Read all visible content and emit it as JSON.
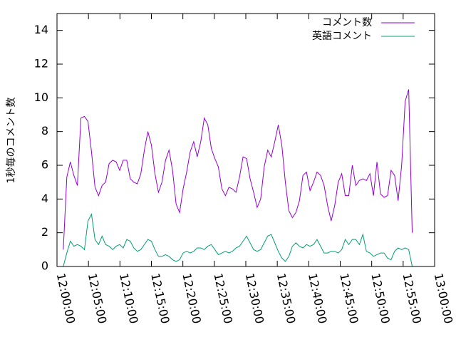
{
  "chart_data": {
    "type": "line",
    "ylabel": "1秒毎のコメント数",
    "legend": "top-right",
    "x": [
      1,
      1.56,
      2.12,
      2.68,
      3.24,
      3.8,
      4.36,
      4.92,
      5.48,
      6.04,
      6.6,
      7.16,
      7.72,
      8.28,
      8.84,
      9.4,
      9.96,
      10.52,
      11.08,
      11.64,
      12.2,
      12.76,
      13.32,
      13.88,
      14.44,
      15,
      15.56,
      16.12,
      16.68,
      17.24,
      17.8,
      18.36,
      18.92,
      19.48,
      20.04,
      20.6,
      21.16,
      21.72,
      22.28,
      22.84,
      23.4,
      23.96,
      24.52,
      25.08,
      25.64,
      26.2,
      26.76,
      27.32,
      27.88,
      28.44,
      29,
      29.56,
      30.12,
      30.68,
      31.24,
      31.8,
      32.36,
      32.92,
      33.48,
      34.04,
      34.6,
      35.16,
      35.72,
      36.28,
      36.84,
      37.4,
      37.96,
      38.52,
      39.08,
      39.64,
      40.2,
      40.76,
      41.32,
      41.88,
      42.44,
      43,
      43.56,
      44.12,
      44.68,
      45.24,
      45.8,
      46.36,
      46.92,
      47.48,
      48.04,
      48.6,
      49.16,
      49.72,
      50.28,
      50.84,
      51.4,
      51.96,
      52.52,
      53.08,
      53.64,
      54.2,
      54.76,
      55.32,
      55.88,
      56.44
    ],
    "series": [
      {
        "name": "コメント数",
        "color": "#9400d3",
        "values": [
          1.0,
          5.3,
          6.2,
          5.4,
          4.8,
          8.8,
          8.9,
          8.6,
          6.8,
          4.7,
          4.2,
          4.8,
          5.0,
          6.1,
          6.3,
          6.2,
          5.7,
          6.3,
          6.3,
          5.2,
          5.0,
          4.9,
          5.5,
          6.9,
          8.0,
          7.2,
          5.5,
          4.4,
          5.0,
          6.3,
          6.9,
          5.7,
          3.7,
          3.2,
          4.6,
          5.6,
          6.8,
          7.4,
          6.5,
          7.4,
          8.8,
          8.4,
          7.0,
          6.4,
          5.9,
          4.6,
          4.2,
          4.7,
          4.6,
          4.4,
          5.3,
          6.5,
          6.4,
          5.2,
          4.4,
          3.5,
          4.0,
          5.9,
          6.9,
          6.5,
          7.4,
          8.4,
          7.2,
          5.0,
          3.3,
          2.9,
          3.2,
          3.9,
          5.4,
          5.6,
          4.5,
          5.0,
          5.6,
          5.4,
          4.8,
          3.6,
          2.7,
          3.6,
          5.0,
          5.5,
          4.2,
          4.2,
          6.0,
          4.8,
          5.1,
          5.2,
          5.1,
          5.5,
          4.2,
          6.2,
          4.3,
          4.1,
          4.2,
          5.7,
          5.4,
          3.9,
          6.0,
          9.8,
          10.5,
          2.0
        ]
      },
      {
        "name": "英語コメント",
        "color": "#009e73",
        "values": [
          0.0,
          0.8,
          1.5,
          1.2,
          1.3,
          1.2,
          1.0,
          2.7,
          3.1,
          1.6,
          1.3,
          1.8,
          1.3,
          1.2,
          1.0,
          1.2,
          1.3,
          1.1,
          1.6,
          1.5,
          1.1,
          0.9,
          1.0,
          1.3,
          1.6,
          1.5,
          1.0,
          0.6,
          0.6,
          0.7,
          0.6,
          0.4,
          0.3,
          0.4,
          0.8,
          0.9,
          0.8,
          0.9,
          1.1,
          1.1,
          1.0,
          1.2,
          1.3,
          1.0,
          0.7,
          0.8,
          0.9,
          0.8,
          0.9,
          1.1,
          1.2,
          1.5,
          1.8,
          1.4,
          1.0,
          0.9,
          1.0,
          1.4,
          1.8,
          1.9,
          1.4,
          0.9,
          0.5,
          0.3,
          0.6,
          1.2,
          1.4,
          1.2,
          1.1,
          1.3,
          1.2,
          1.3,
          1.6,
          1.2,
          0.8,
          0.8,
          0.9,
          0.9,
          0.8,
          1.0,
          1.6,
          1.3,
          1.6,
          1.6,
          1.3,
          1.9,
          0.9,
          0.8,
          0.6,
          0.7,
          0.8,
          0.8,
          0.5,
          0.4,
          0.9,
          1.1,
          1.0,
          1.1,
          1.0,
          0.0
        ]
      }
    ],
    "xlim": [
      0,
      60
    ],
    "xticks": [
      {
        "value": 0,
        "label": "12:00:00"
      },
      {
        "value": 5,
        "label": "12:05:00"
      },
      {
        "value": 10,
        "label": "12:10:00"
      },
      {
        "value": 15,
        "label": "12:15:00"
      },
      {
        "value": 20,
        "label": "12:20:00"
      },
      {
        "value": 25,
        "label": "12:25:00"
      },
      {
        "value": 30,
        "label": "12:30:00"
      },
      {
        "value": 35,
        "label": "12:35:00"
      },
      {
        "value": 40,
        "label": "12:40:00"
      },
      {
        "value": 45,
        "label": "12:45:00"
      },
      {
        "value": 50,
        "label": "12:50:00"
      },
      {
        "value": 55,
        "label": "12:55:00"
      },
      {
        "value": 60,
        "label": "13:00:00"
      }
    ],
    "ylim": [
      0,
      15
    ],
    "yticks": [
      0,
      2,
      4,
      6,
      8,
      10,
      12,
      14
    ]
  }
}
